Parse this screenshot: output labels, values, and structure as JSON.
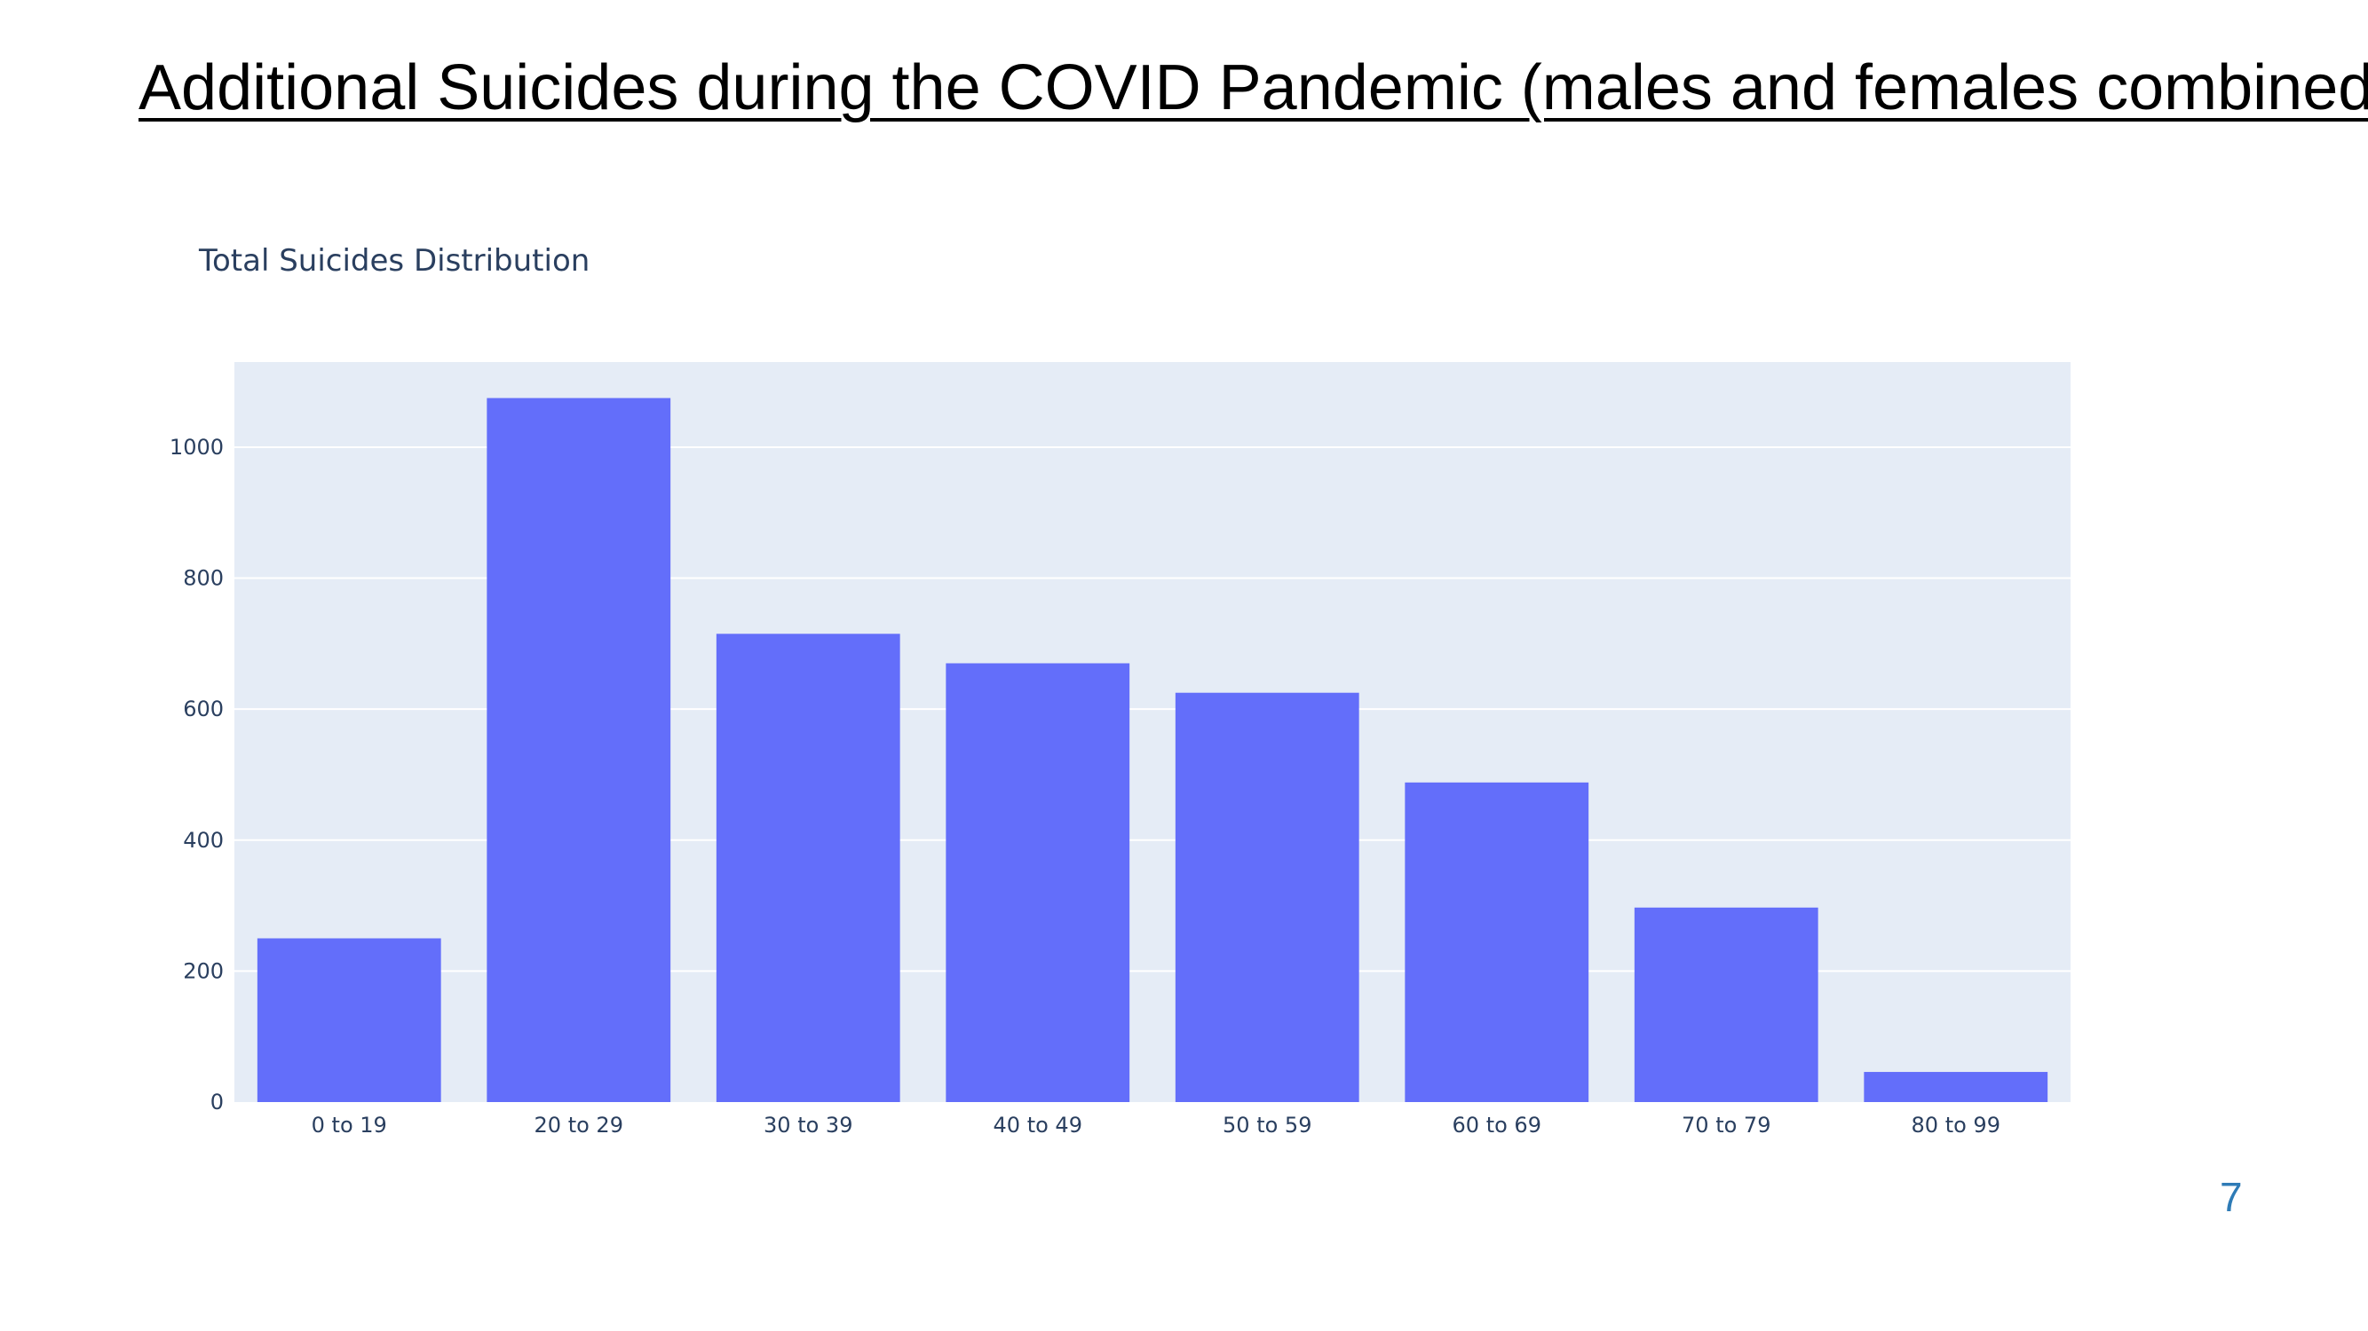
{
  "slide": {
    "title": "Additional Suicides during the COVID Pandemic (males and females combined)",
    "page_number": "7"
  },
  "colors": {
    "bar": "#636efa",
    "plot_background": "#e5ecf6",
    "gridline": "#ffffff",
    "tick_text": "#2a3f5f",
    "page_number": "#2e7bb6"
  },
  "chart_data": {
    "type": "bar",
    "title": "Total Suicides Distribution",
    "xlabel": "",
    "ylabel": "",
    "categories": [
      "0 to 19",
      "20 to 29",
      "30 to 39",
      "40 to 49",
      "50 to 59",
      "60 to 69",
      "70 to 79",
      "80 to 99"
    ],
    "values": [
      250,
      1075,
      715,
      670,
      625,
      488,
      297,
      46
    ],
    "ylim": [
      0,
      1130
    ],
    "yticks": [
      0,
      200,
      400,
      600,
      800,
      1000
    ],
    "grid": true,
    "legend": "none"
  }
}
